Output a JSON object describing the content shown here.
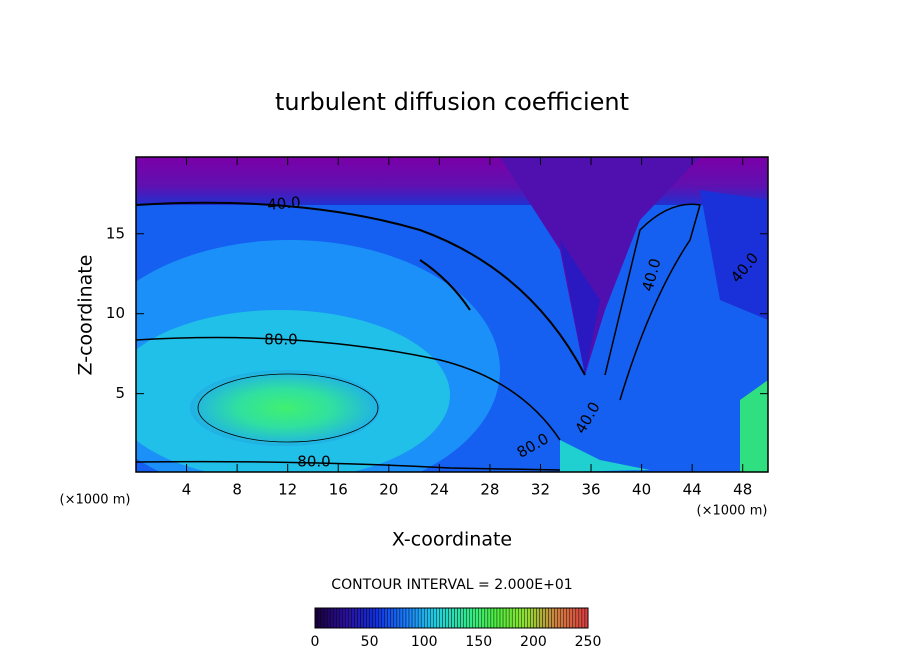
{
  "chart_data": {
    "type": "contour",
    "title": "turbulent diffusion coefficient",
    "xlabel": "X-coordinate",
    "ylabel": "Z-coordinate",
    "x_unit_left": "(×1000 m)",
    "x_unit_right": "(×1000 m)",
    "contour_interval": "CONTOUR INTERVAL = 2.000E+01",
    "xlim": [
      0,
      50
    ],
    "ylim": [
      0.1,
      19.8
    ],
    "xticks": [
      4,
      8,
      12,
      16,
      20,
      24,
      28,
      32,
      36,
      40,
      44,
      48
    ],
    "yticks": [
      5,
      10,
      15
    ],
    "contour_labels": [
      "40.0",
      "80.0",
      "80.0",
      "80.0",
      "40.0",
      "40.0",
      "40.0"
    ],
    "clim": [
      0,
      250
    ],
    "cticks": [
      0,
      50,
      100,
      150,
      200,
      250
    ],
    "colormap": [
      "#1a0040",
      "#2a10a0",
      "#1030e0",
      "#1a80ff",
      "#20d0e0",
      "#30e890",
      "#50f040",
      "#90e030",
      "#d08040",
      "#e04040"
    ]
  }
}
